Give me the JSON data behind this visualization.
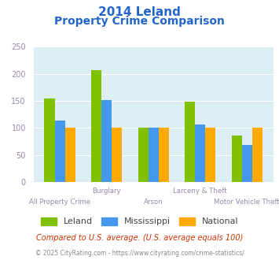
{
  "title_line1": "2014 Leland",
  "title_line2": "Property Crime Comparison",
  "categories": [
    "All Property Crime",
    "Burglary",
    "Arson",
    "Larceny & Theft",
    "Motor Vehicle Theft"
  ],
  "leland": [
    155,
    207,
    101,
    149,
    86
  ],
  "mississippi": [
    113,
    151,
    101,
    106,
    69
  ],
  "national": [
    100,
    101,
    100,
    100,
    101
  ],
  "leland_color": "#80c000",
  "mississippi_color": "#4499ee",
  "national_color": "#ffaa00",
  "ylim": [
    0,
    250
  ],
  "yticks": [
    0,
    50,
    100,
    150,
    200,
    250
  ],
  "title_color": "#2266cc",
  "axis_label_color": "#9988aa",
  "bg_color": "#ddeef5",
  "legend_label_color": "#444444",
  "footer_text": "Compared to U.S. average. (U.S. average equals 100)",
  "credit_text": "© 2025 CityRating.com - https://www.cityrating.com/crime-statistics/",
  "footer_color": "#cc3300",
  "credit_color": "#888888",
  "credit_link_color": "#3366cc"
}
